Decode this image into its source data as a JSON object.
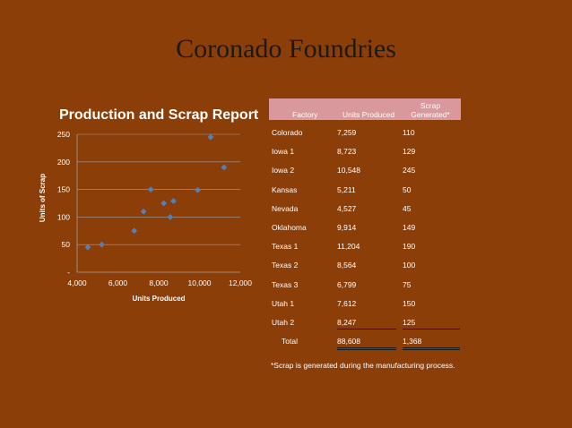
{
  "slide": {
    "title": "Coronado Foundries"
  },
  "chart_data": {
    "type": "scatter",
    "title": "Production and Scrap Report",
    "xlabel": "Units Produced",
    "ylabel": "Units of Scrap",
    "xlim": [
      4000,
      12000
    ],
    "ylim": [
      0,
      250
    ],
    "x_ticks": [
      "4,000",
      "6,000",
      "8,000",
      "10,000",
      "12,000"
    ],
    "y_ticks": [
      "-",
      "50",
      "100",
      "150",
      "200",
      "250"
    ],
    "grid": true,
    "marker_color": "#4f81bd",
    "points": [
      {
        "x": 7259,
        "y": 110
      },
      {
        "x": 8723,
        "y": 129
      },
      {
        "x": 10548,
        "y": 245
      },
      {
        "x": 5211,
        "y": 50
      },
      {
        "x": 4527,
        "y": 45
      },
      {
        "x": 9914,
        "y": 149
      },
      {
        "x": 11204,
        "y": 190
      },
      {
        "x": 8564,
        "y": 100
      },
      {
        "x": 6799,
        "y": 75
      },
      {
        "x": 7612,
        "y": 150
      },
      {
        "x": 8247,
        "y": 125
      }
    ]
  },
  "table": {
    "headers": {
      "factory": "Factory",
      "units": "Units Produced",
      "scrap_line1": "Scrap",
      "scrap_line2": "Generated*"
    },
    "rows": [
      {
        "factory": "Colorado",
        "units": "7,259",
        "scrap": "110"
      },
      {
        "factory": "Iowa 1",
        "units": "8,723",
        "scrap": "129"
      },
      {
        "factory": "Iowa 2",
        "units": "10,548",
        "scrap": "245"
      },
      {
        "factory": "Kansas",
        "units": "5,211",
        "scrap": "50"
      },
      {
        "factory": "Nevada",
        "units": "4,527",
        "scrap": "45"
      },
      {
        "factory": "Oklahoma",
        "units": "9,914",
        "scrap": "149"
      },
      {
        "factory": "Texas 1",
        "units": "11,204",
        "scrap": "190"
      },
      {
        "factory": "Texas 2",
        "units": "8,564",
        "scrap": "100"
      },
      {
        "factory": "Texas 3",
        "units": "6,799",
        "scrap": "75"
      },
      {
        "factory": "Utah  1",
        "units": "7,612",
        "scrap": "150"
      },
      {
        "factory": "Utah  2",
        "units": "8,247",
        "scrap": "125"
      }
    ],
    "total": {
      "label": "Total",
      "units": "88,608",
      "scrap": "1,368"
    },
    "footnote": "*Scrap is generated during the manufacturing process."
  }
}
